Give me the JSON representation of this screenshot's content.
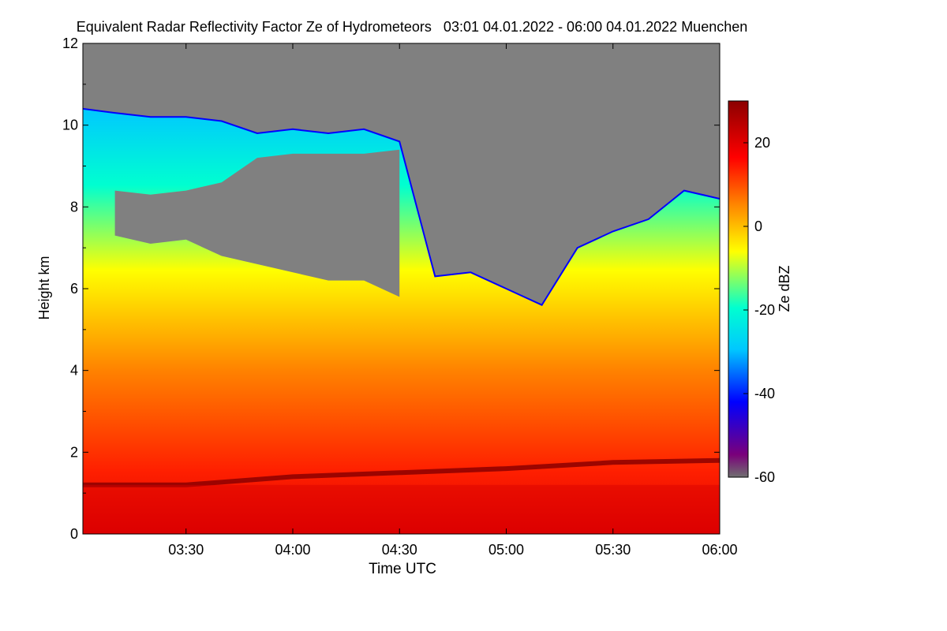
{
  "chart_data": {
    "type": "heatmap",
    "title": "Equivalent Radar Reflectivity Factor Ze of Hydrometeors   03:01 04.01.2022 - 06:00 04.01.2022 Muenchen",
    "xlabel": "Time UTC",
    "ylabel": "Height km",
    "colorbar_label": "Ze dBZ",
    "xlim": [
      "03:01",
      "06:00"
    ],
    "x_ticks": [
      "03:30",
      "04:00",
      "04:30",
      "05:00",
      "05:30",
      "06:00"
    ],
    "ylim": [
      0,
      12
    ],
    "y_ticks": [
      0,
      2,
      4,
      6,
      8,
      10,
      12
    ],
    "zlim": [
      -60,
      30
    ],
    "colorbar_ticks": [
      -60,
      -40,
      -20,
      0,
      20
    ],
    "no_data_color": "#808080",
    "colormap": [
      "#707070",
      "#7a007a",
      "#0000ff",
      "#00c8ff",
      "#00ffd0",
      "#ffff00",
      "#ff8000",
      "#ff0000",
      "#8b0000"
    ],
    "cloud_top_km": [
      {
        "time": "03:01",
        "top": 10.4
      },
      {
        "time": "03:10",
        "top": 10.3
      },
      {
        "time": "03:20",
        "top": 10.2
      },
      {
        "time": "03:30",
        "top": 10.2
      },
      {
        "time": "03:40",
        "top": 10.1
      },
      {
        "time": "03:50",
        "top": 9.8
      },
      {
        "time": "04:00",
        "top": 9.9
      },
      {
        "time": "04:10",
        "top": 9.8
      },
      {
        "time": "04:20",
        "top": 9.9
      },
      {
        "time": "04:30",
        "top": 9.6
      },
      {
        "time": "04:40",
        "top": 6.3
      },
      {
        "time": "04:50",
        "top": 6.4
      },
      {
        "time": "05:00",
        "top": 6.0
      },
      {
        "time": "05:10",
        "top": 5.6
      },
      {
        "time": "05:20",
        "top": 7.0
      },
      {
        "time": "05:30",
        "top": 7.4
      },
      {
        "time": "05:40",
        "top": 7.7
      },
      {
        "time": "05:50",
        "top": 8.4
      },
      {
        "time": "06:00",
        "top": 8.2
      }
    ],
    "gap_km": [
      {
        "time": "03:10",
        "low": 7.3,
        "high": 8.4
      },
      {
        "time": "03:20",
        "low": 7.1,
        "high": 8.3
      },
      {
        "time": "03:30",
        "low": 7.2,
        "high": 8.4
      },
      {
        "time": "03:40",
        "low": 6.8,
        "high": 8.6
      },
      {
        "time": "03:50",
        "low": 6.6,
        "high": 9.2
      },
      {
        "time": "04:00",
        "low": 6.4,
        "high": 9.3
      },
      {
        "time": "04:10",
        "low": 6.2,
        "high": 9.3
      },
      {
        "time": "04:20",
        "low": 6.2,
        "high": 9.3
      },
      {
        "time": "04:30",
        "low": 5.8,
        "high": 9.4
      }
    ],
    "melting_layer_km": [
      {
        "time": "03:01",
        "height": 1.2
      },
      {
        "time": "03:30",
        "height": 1.2
      },
      {
        "time": "04:00",
        "height": 1.4
      },
      {
        "time": "04:30",
        "height": 1.5
      },
      {
        "time": "05:00",
        "height": 1.6
      },
      {
        "time": "05:30",
        "height": 1.75
      },
      {
        "time": "06:00",
        "height": 1.8
      }
    ]
  }
}
